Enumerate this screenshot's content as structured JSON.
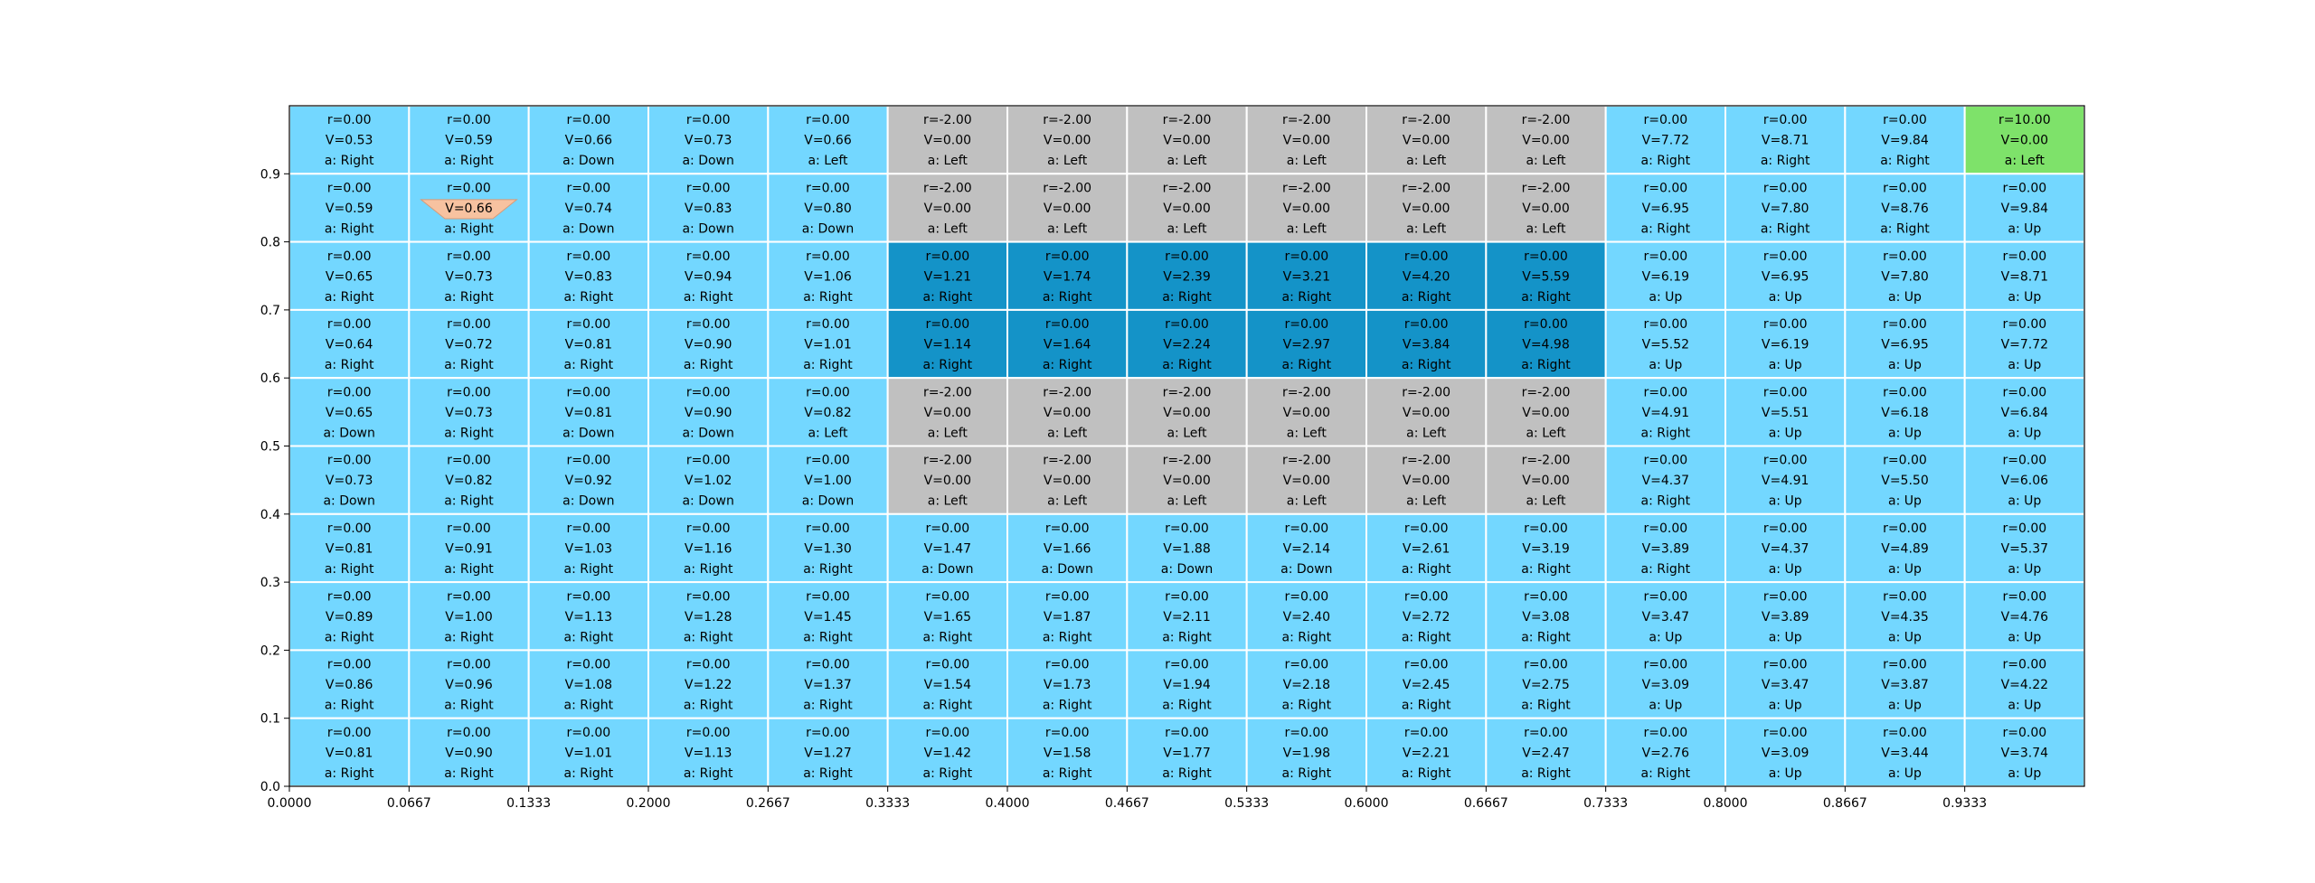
{
  "chart_data": {
    "type": "heatmap",
    "title": "",
    "xlabel": "",
    "ylabel": "",
    "xlim": [
      0,
      1
    ],
    "ylim": [
      0,
      1
    ],
    "grid": true,
    "columns": 15,
    "rows": 10,
    "x_ticks": [
      "0.0000",
      "0.0667",
      "0.1333",
      "0.2000",
      "0.2667",
      "0.3333",
      "0.4000",
      "0.4667",
      "0.5333",
      "0.6000",
      "0.6667",
      "0.7333",
      "0.8000",
      "0.8667",
      "0.9333"
    ],
    "y_ticks": [
      "0.0",
      "0.1",
      "0.2",
      "0.3",
      "0.4",
      "0.5",
      "0.6",
      "0.7",
      "0.8",
      "0.9"
    ],
    "colors": {
      "normal": "#73d7ff",
      "penalty": "#c0c0c0",
      "corridor": "#1493c8",
      "goal": "#7ee26a",
      "agent": "#f7c2a0",
      "grid_line": "#ffffff"
    },
    "agent": {
      "row": 1,
      "col": 1,
      "shape": "inverted-trapezoid"
    },
    "cells": [
      [
        {
          "r": "r=0.00",
          "v": "V=0.53",
          "a": "a: Right",
          "kind": "normal"
        },
        {
          "r": "r=0.00",
          "v": "V=0.59",
          "a": "a: Right",
          "kind": "normal"
        },
        {
          "r": "r=0.00",
          "v": "V=0.66",
          "a": "a: Down",
          "kind": "normal"
        },
        {
          "r": "r=0.00",
          "v": "V=0.73",
          "a": "a: Down",
          "kind": "normal"
        },
        {
          "r": "r=0.00",
          "v": "V=0.66",
          "a": "a: Left",
          "kind": "normal"
        },
        {
          "r": "r=-2.00",
          "v": "V=0.00",
          "a": "a: Left",
          "kind": "penalty"
        },
        {
          "r": "r=-2.00",
          "v": "V=0.00",
          "a": "a: Left",
          "kind": "penalty"
        },
        {
          "r": "r=-2.00",
          "v": "V=0.00",
          "a": "a: Left",
          "kind": "penalty"
        },
        {
          "r": "r=-2.00",
          "v": "V=0.00",
          "a": "a: Left",
          "kind": "penalty"
        },
        {
          "r": "r=-2.00",
          "v": "V=0.00",
          "a": "a: Left",
          "kind": "penalty"
        },
        {
          "r": "r=-2.00",
          "v": "V=0.00",
          "a": "a: Left",
          "kind": "penalty"
        },
        {
          "r": "r=0.00",
          "v": "V=7.72",
          "a": "a: Right",
          "kind": "normal"
        },
        {
          "r": "r=0.00",
          "v": "V=8.71",
          "a": "a: Right",
          "kind": "normal"
        },
        {
          "r": "r=0.00",
          "v": "V=9.84",
          "a": "a: Right",
          "kind": "normal"
        },
        {
          "r": "r=10.00",
          "v": "V=0.00",
          "a": "a: Left",
          "kind": "goal"
        }
      ],
      [
        {
          "r": "r=0.00",
          "v": "V=0.59",
          "a": "a: Right",
          "kind": "normal"
        },
        {
          "r": "r=0.00",
          "v": "V=0.66",
          "a": "a: Right",
          "kind": "normal"
        },
        {
          "r": "r=0.00",
          "v": "V=0.74",
          "a": "a: Down",
          "kind": "normal"
        },
        {
          "r": "r=0.00",
          "v": "V=0.83",
          "a": "a: Down",
          "kind": "normal"
        },
        {
          "r": "r=0.00",
          "v": "V=0.80",
          "a": "a: Down",
          "kind": "normal"
        },
        {
          "r": "r=-2.00",
          "v": "V=0.00",
          "a": "a: Left",
          "kind": "penalty"
        },
        {
          "r": "r=-2.00",
          "v": "V=0.00",
          "a": "a: Left",
          "kind": "penalty"
        },
        {
          "r": "r=-2.00",
          "v": "V=0.00",
          "a": "a: Left",
          "kind": "penalty"
        },
        {
          "r": "r=-2.00",
          "v": "V=0.00",
          "a": "a: Left",
          "kind": "penalty"
        },
        {
          "r": "r=-2.00",
          "v": "V=0.00",
          "a": "a: Left",
          "kind": "penalty"
        },
        {
          "r": "r=-2.00",
          "v": "V=0.00",
          "a": "a: Left",
          "kind": "penalty"
        },
        {
          "r": "r=0.00",
          "v": "V=6.95",
          "a": "a: Right",
          "kind": "normal"
        },
        {
          "r": "r=0.00",
          "v": "V=7.80",
          "a": "a: Right",
          "kind": "normal"
        },
        {
          "r": "r=0.00",
          "v": "V=8.76",
          "a": "a: Right",
          "kind": "normal"
        },
        {
          "r": "r=0.00",
          "v": "V=9.84",
          "a": "a: Up",
          "kind": "normal"
        }
      ],
      [
        {
          "r": "r=0.00",
          "v": "V=0.65",
          "a": "a: Right",
          "kind": "normal"
        },
        {
          "r": "r=0.00",
          "v": "V=0.73",
          "a": "a: Right",
          "kind": "normal"
        },
        {
          "r": "r=0.00",
          "v": "V=0.83",
          "a": "a: Right",
          "kind": "normal"
        },
        {
          "r": "r=0.00",
          "v": "V=0.94",
          "a": "a: Right",
          "kind": "normal"
        },
        {
          "r": "r=0.00",
          "v": "V=1.06",
          "a": "a: Right",
          "kind": "normal"
        },
        {
          "r": "r=0.00",
          "v": "V=1.21",
          "a": "a: Right",
          "kind": "corridor"
        },
        {
          "r": "r=0.00",
          "v": "V=1.74",
          "a": "a: Right",
          "kind": "corridor"
        },
        {
          "r": "r=0.00",
          "v": "V=2.39",
          "a": "a: Right",
          "kind": "corridor"
        },
        {
          "r": "r=0.00",
          "v": "V=3.21",
          "a": "a: Right",
          "kind": "corridor"
        },
        {
          "r": "r=0.00",
          "v": "V=4.20",
          "a": "a: Right",
          "kind": "corridor"
        },
        {
          "r": "r=0.00",
          "v": "V=5.59",
          "a": "a: Right",
          "kind": "corridor"
        },
        {
          "r": "r=0.00",
          "v": "V=6.19",
          "a": "a: Up",
          "kind": "normal"
        },
        {
          "r": "r=0.00",
          "v": "V=6.95",
          "a": "a: Up",
          "kind": "normal"
        },
        {
          "r": "r=0.00",
          "v": "V=7.80",
          "a": "a: Up",
          "kind": "normal"
        },
        {
          "r": "r=0.00",
          "v": "V=8.71",
          "a": "a: Up",
          "kind": "normal"
        }
      ],
      [
        {
          "r": "r=0.00",
          "v": "V=0.64",
          "a": "a: Right",
          "kind": "normal"
        },
        {
          "r": "r=0.00",
          "v": "V=0.72",
          "a": "a: Right",
          "kind": "normal"
        },
        {
          "r": "r=0.00",
          "v": "V=0.81",
          "a": "a: Right",
          "kind": "normal"
        },
        {
          "r": "r=0.00",
          "v": "V=0.90",
          "a": "a: Right",
          "kind": "normal"
        },
        {
          "r": "r=0.00",
          "v": "V=1.01",
          "a": "a: Right",
          "kind": "normal"
        },
        {
          "r": "r=0.00",
          "v": "V=1.14",
          "a": "a: Right",
          "kind": "corridor"
        },
        {
          "r": "r=0.00",
          "v": "V=1.64",
          "a": "a: Right",
          "kind": "corridor"
        },
        {
          "r": "r=0.00",
          "v": "V=2.24",
          "a": "a: Right",
          "kind": "corridor"
        },
        {
          "r": "r=0.00",
          "v": "V=2.97",
          "a": "a: Right",
          "kind": "corridor"
        },
        {
          "r": "r=0.00",
          "v": "V=3.84",
          "a": "a: Right",
          "kind": "corridor"
        },
        {
          "r": "r=0.00",
          "v": "V=4.98",
          "a": "a: Right",
          "kind": "corridor"
        },
        {
          "r": "r=0.00",
          "v": "V=5.52",
          "a": "a: Up",
          "kind": "normal"
        },
        {
          "r": "r=0.00",
          "v": "V=6.19",
          "a": "a: Up",
          "kind": "normal"
        },
        {
          "r": "r=0.00",
          "v": "V=6.95",
          "a": "a: Up",
          "kind": "normal"
        },
        {
          "r": "r=0.00",
          "v": "V=7.72",
          "a": "a: Up",
          "kind": "normal"
        }
      ],
      [
        {
          "r": "r=0.00",
          "v": "V=0.65",
          "a": "a: Down",
          "kind": "normal"
        },
        {
          "r": "r=0.00",
          "v": "V=0.73",
          "a": "a: Right",
          "kind": "normal"
        },
        {
          "r": "r=0.00",
          "v": "V=0.81",
          "a": "a: Down",
          "kind": "normal"
        },
        {
          "r": "r=0.00",
          "v": "V=0.90",
          "a": "a: Down",
          "kind": "normal"
        },
        {
          "r": "r=0.00",
          "v": "V=0.82",
          "a": "a: Left",
          "kind": "normal"
        },
        {
          "r": "r=-2.00",
          "v": "V=0.00",
          "a": "a: Left",
          "kind": "penalty"
        },
        {
          "r": "r=-2.00",
          "v": "V=0.00",
          "a": "a: Left",
          "kind": "penalty"
        },
        {
          "r": "r=-2.00",
          "v": "V=0.00",
          "a": "a: Left",
          "kind": "penalty"
        },
        {
          "r": "r=-2.00",
          "v": "V=0.00",
          "a": "a: Left",
          "kind": "penalty"
        },
        {
          "r": "r=-2.00",
          "v": "V=0.00",
          "a": "a: Left",
          "kind": "penalty"
        },
        {
          "r": "r=-2.00",
          "v": "V=0.00",
          "a": "a: Left",
          "kind": "penalty"
        },
        {
          "r": "r=0.00",
          "v": "V=4.91",
          "a": "a: Right",
          "kind": "normal"
        },
        {
          "r": "r=0.00",
          "v": "V=5.51",
          "a": "a: Up",
          "kind": "normal"
        },
        {
          "r": "r=0.00",
          "v": "V=6.18",
          "a": "a: Up",
          "kind": "normal"
        },
        {
          "r": "r=0.00",
          "v": "V=6.84",
          "a": "a: Up",
          "kind": "normal"
        }
      ],
      [
        {
          "r": "r=0.00",
          "v": "V=0.73",
          "a": "a: Down",
          "kind": "normal"
        },
        {
          "r": "r=0.00",
          "v": "V=0.82",
          "a": "a: Right",
          "kind": "normal"
        },
        {
          "r": "r=0.00",
          "v": "V=0.92",
          "a": "a: Down",
          "kind": "normal"
        },
        {
          "r": "r=0.00",
          "v": "V=1.02",
          "a": "a: Down",
          "kind": "normal"
        },
        {
          "r": "r=0.00",
          "v": "V=1.00",
          "a": "a: Down",
          "kind": "normal"
        },
        {
          "r": "r=-2.00",
          "v": "V=0.00",
          "a": "a: Left",
          "kind": "penalty"
        },
        {
          "r": "r=-2.00",
          "v": "V=0.00",
          "a": "a: Left",
          "kind": "penalty"
        },
        {
          "r": "r=-2.00",
          "v": "V=0.00",
          "a": "a: Left",
          "kind": "penalty"
        },
        {
          "r": "r=-2.00",
          "v": "V=0.00",
          "a": "a: Left",
          "kind": "penalty"
        },
        {
          "r": "r=-2.00",
          "v": "V=0.00",
          "a": "a: Left",
          "kind": "penalty"
        },
        {
          "r": "r=-2.00",
          "v": "V=0.00",
          "a": "a: Left",
          "kind": "penalty"
        },
        {
          "r": "r=0.00",
          "v": "V=4.37",
          "a": "a: Right",
          "kind": "normal"
        },
        {
          "r": "r=0.00",
          "v": "V=4.91",
          "a": "a: Up",
          "kind": "normal"
        },
        {
          "r": "r=0.00",
          "v": "V=5.50",
          "a": "a: Up",
          "kind": "normal"
        },
        {
          "r": "r=0.00",
          "v": "V=6.06",
          "a": "a: Up",
          "kind": "normal"
        }
      ],
      [
        {
          "r": "r=0.00",
          "v": "V=0.81",
          "a": "a: Right",
          "kind": "normal"
        },
        {
          "r": "r=0.00",
          "v": "V=0.91",
          "a": "a: Right",
          "kind": "normal"
        },
        {
          "r": "r=0.00",
          "v": "V=1.03",
          "a": "a: Right",
          "kind": "normal"
        },
        {
          "r": "r=0.00",
          "v": "V=1.16",
          "a": "a: Right",
          "kind": "normal"
        },
        {
          "r": "r=0.00",
          "v": "V=1.30",
          "a": "a: Right",
          "kind": "normal"
        },
        {
          "r": "r=0.00",
          "v": "V=1.47",
          "a": "a: Down",
          "kind": "normal"
        },
        {
          "r": "r=0.00",
          "v": "V=1.66",
          "a": "a: Down",
          "kind": "normal"
        },
        {
          "r": "r=0.00",
          "v": "V=1.88",
          "a": "a: Down",
          "kind": "normal"
        },
        {
          "r": "r=0.00",
          "v": "V=2.14",
          "a": "a: Down",
          "kind": "normal"
        },
        {
          "r": "r=0.00",
          "v": "V=2.61",
          "a": "a: Right",
          "kind": "normal"
        },
        {
          "r": "r=0.00",
          "v": "V=3.19",
          "a": "a: Right",
          "kind": "normal"
        },
        {
          "r": "r=0.00",
          "v": "V=3.89",
          "a": "a: Right",
          "kind": "normal"
        },
        {
          "r": "r=0.00",
          "v": "V=4.37",
          "a": "a: Up",
          "kind": "normal"
        },
        {
          "r": "r=0.00",
          "v": "V=4.89",
          "a": "a: Up",
          "kind": "normal"
        },
        {
          "r": "r=0.00",
          "v": "V=5.37",
          "a": "a: Up",
          "kind": "normal"
        }
      ],
      [
        {
          "r": "r=0.00",
          "v": "V=0.89",
          "a": "a: Right",
          "kind": "normal"
        },
        {
          "r": "r=0.00",
          "v": "V=1.00",
          "a": "a: Right",
          "kind": "normal"
        },
        {
          "r": "r=0.00",
          "v": "V=1.13",
          "a": "a: Right",
          "kind": "normal"
        },
        {
          "r": "r=0.00",
          "v": "V=1.28",
          "a": "a: Right",
          "kind": "normal"
        },
        {
          "r": "r=0.00",
          "v": "V=1.45",
          "a": "a: Right",
          "kind": "normal"
        },
        {
          "r": "r=0.00",
          "v": "V=1.65",
          "a": "a: Right",
          "kind": "normal"
        },
        {
          "r": "r=0.00",
          "v": "V=1.87",
          "a": "a: Right",
          "kind": "normal"
        },
        {
          "r": "r=0.00",
          "v": "V=2.11",
          "a": "a: Right",
          "kind": "normal"
        },
        {
          "r": "r=0.00",
          "v": "V=2.40",
          "a": "a: Right",
          "kind": "normal"
        },
        {
          "r": "r=0.00",
          "v": "V=2.72",
          "a": "a: Right",
          "kind": "normal"
        },
        {
          "r": "r=0.00",
          "v": "V=3.08",
          "a": "a: Right",
          "kind": "normal"
        },
        {
          "r": "r=0.00",
          "v": "V=3.47",
          "a": "a: Up",
          "kind": "normal"
        },
        {
          "r": "r=0.00",
          "v": "V=3.89",
          "a": "a: Up",
          "kind": "normal"
        },
        {
          "r": "r=0.00",
          "v": "V=4.35",
          "a": "a: Up",
          "kind": "normal"
        },
        {
          "r": "r=0.00",
          "v": "V=4.76",
          "a": "a: Up",
          "kind": "normal"
        }
      ],
      [
        {
          "r": "r=0.00",
          "v": "V=0.86",
          "a": "a: Right",
          "kind": "normal"
        },
        {
          "r": "r=0.00",
          "v": "V=0.96",
          "a": "a: Right",
          "kind": "normal"
        },
        {
          "r": "r=0.00",
          "v": "V=1.08",
          "a": "a: Right",
          "kind": "normal"
        },
        {
          "r": "r=0.00",
          "v": "V=1.22",
          "a": "a: Right",
          "kind": "normal"
        },
        {
          "r": "r=0.00",
          "v": "V=1.37",
          "a": "a: Right",
          "kind": "normal"
        },
        {
          "r": "r=0.00",
          "v": "V=1.54",
          "a": "a: Right",
          "kind": "normal"
        },
        {
          "r": "r=0.00",
          "v": "V=1.73",
          "a": "a: Right",
          "kind": "normal"
        },
        {
          "r": "r=0.00",
          "v": "V=1.94",
          "a": "a: Right",
          "kind": "normal"
        },
        {
          "r": "r=0.00",
          "v": "V=2.18",
          "a": "a: Right",
          "kind": "normal"
        },
        {
          "r": "r=0.00",
          "v": "V=2.45",
          "a": "a: Right",
          "kind": "normal"
        },
        {
          "r": "r=0.00",
          "v": "V=2.75",
          "a": "a: Right",
          "kind": "normal"
        },
        {
          "r": "r=0.00",
          "v": "V=3.09",
          "a": "a: Up",
          "kind": "normal"
        },
        {
          "r": "r=0.00",
          "v": "V=3.47",
          "a": "a: Up",
          "kind": "normal"
        },
        {
          "r": "r=0.00",
          "v": "V=3.87",
          "a": "a: Up",
          "kind": "normal"
        },
        {
          "r": "r=0.00",
          "v": "V=4.22",
          "a": "a: Up",
          "kind": "normal"
        }
      ],
      [
        {
          "r": "r=0.00",
          "v": "V=0.81",
          "a": "a: Right",
          "kind": "normal"
        },
        {
          "r": "r=0.00",
          "v": "V=0.90",
          "a": "a: Right",
          "kind": "normal"
        },
        {
          "r": "r=0.00",
          "v": "V=1.01",
          "a": "a: Right",
          "kind": "normal"
        },
        {
          "r": "r=0.00",
          "v": "V=1.13",
          "a": "a: Right",
          "kind": "normal"
        },
        {
          "r": "r=0.00",
          "v": "V=1.27",
          "a": "a: Right",
          "kind": "normal"
        },
        {
          "r": "r=0.00",
          "v": "V=1.42",
          "a": "a: Right",
          "kind": "normal"
        },
        {
          "r": "r=0.00",
          "v": "V=1.58",
          "a": "a: Right",
          "kind": "normal"
        },
        {
          "r": "r=0.00",
          "v": "V=1.77",
          "a": "a: Right",
          "kind": "normal"
        },
        {
          "r": "r=0.00",
          "v": "V=1.98",
          "a": "a: Right",
          "kind": "normal"
        },
        {
          "r": "r=0.00",
          "v": "V=2.21",
          "a": "a: Right",
          "kind": "normal"
        },
        {
          "r": "r=0.00",
          "v": "V=2.47",
          "a": "a: Right",
          "kind": "normal"
        },
        {
          "r": "r=0.00",
          "v": "V=2.76",
          "a": "a: Right",
          "kind": "normal"
        },
        {
          "r": "r=0.00",
          "v": "V=3.09",
          "a": "a: Up",
          "kind": "normal"
        },
        {
          "r": "r=0.00",
          "v": "V=3.44",
          "a": "a: Up",
          "kind": "normal"
        },
        {
          "r": "r=0.00",
          "v": "V=3.74",
          "a": "a: Up",
          "kind": "normal"
        }
      ]
    ]
  }
}
